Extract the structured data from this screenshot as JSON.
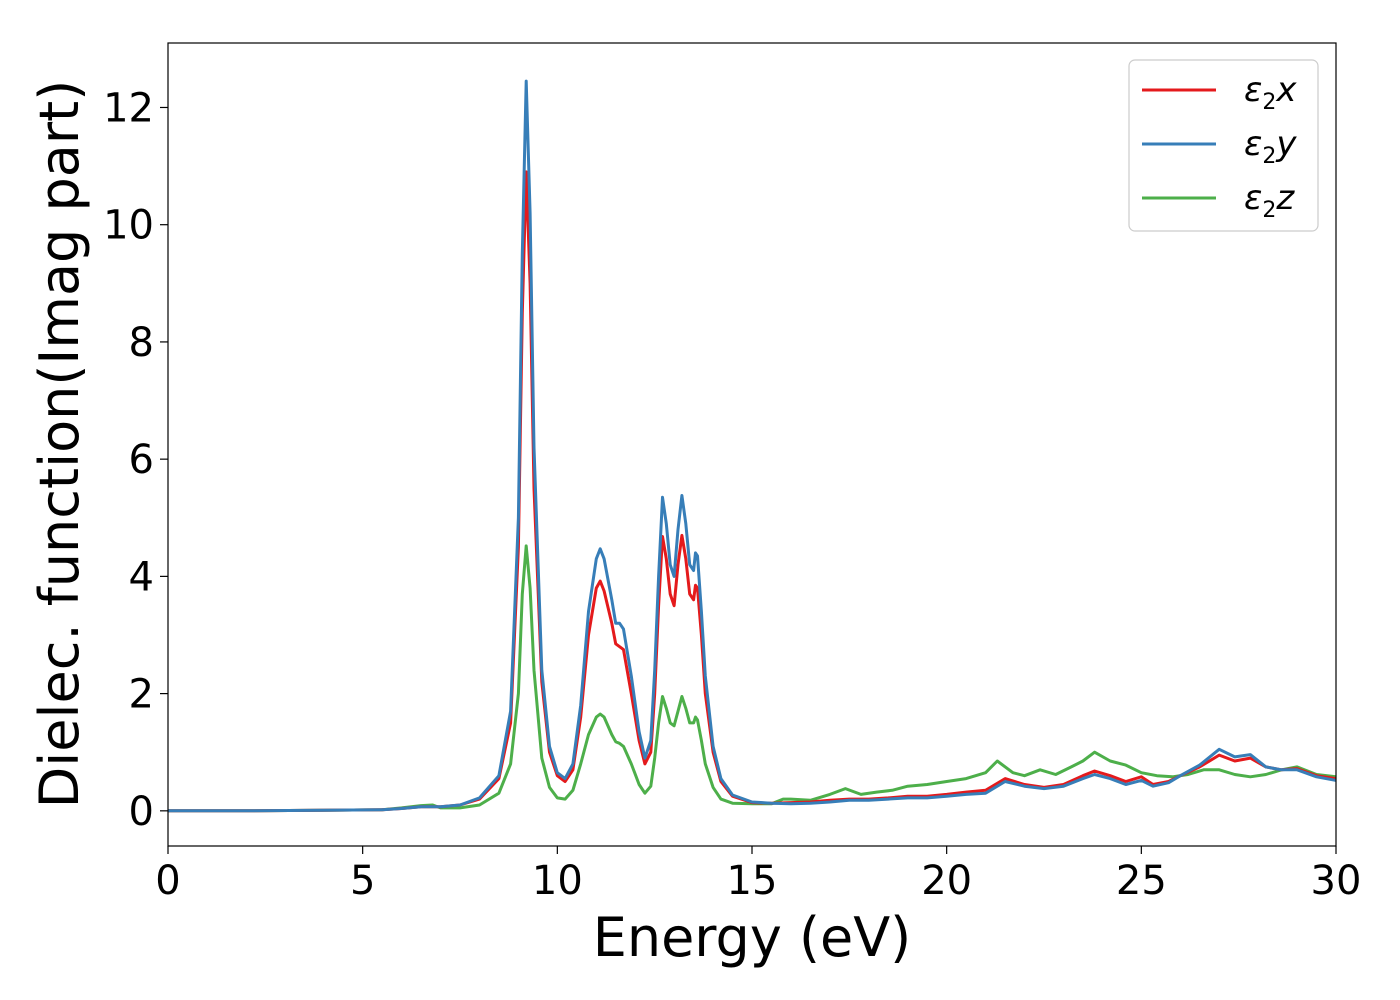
{
  "chart_data": {
    "type": "line",
    "title": "",
    "xlabel": "Energy (eV)",
    "ylabel": "Dielec. function(Imag part)",
    "xlim": [
      0,
      30
    ],
    "ylim": [
      -0.6,
      13.1
    ],
    "xticks": [
      0,
      5,
      10,
      15,
      20,
      25,
      30
    ],
    "yticks": [
      0,
      2,
      4,
      6,
      8,
      10,
      12
    ],
    "grid": false,
    "legend_position": "top-right",
    "series": [
      {
        "name": "ε2x",
        "base": "ε",
        "sub": "2",
        "var": "x",
        "color": "#e41a1c",
        "points": [
          [
            0,
            0
          ],
          [
            2,
            0
          ],
          [
            4,
            0.01
          ],
          [
            5.5,
            0.02
          ],
          [
            6,
            0.04
          ],
          [
            6.5,
            0.07
          ],
          [
            7,
            0.07
          ],
          [
            7.5,
            0.1
          ],
          [
            8,
            0.2
          ],
          [
            8.5,
            0.55
          ],
          [
            8.8,
            1.5
          ],
          [
            9.0,
            4.5
          ],
          [
            9.1,
            8.5
          ],
          [
            9.2,
            10.9
          ],
          [
            9.3,
            9.0
          ],
          [
            9.4,
            5.5
          ],
          [
            9.6,
            2.2
          ],
          [
            9.8,
            1.0
          ],
          [
            10.0,
            0.6
          ],
          [
            10.2,
            0.5
          ],
          [
            10.4,
            0.7
          ],
          [
            10.6,
            1.6
          ],
          [
            10.8,
            3.0
          ],
          [
            11.0,
            3.8
          ],
          [
            11.1,
            3.92
          ],
          [
            11.2,
            3.75
          ],
          [
            11.4,
            3.2
          ],
          [
            11.5,
            2.85
          ],
          [
            11.6,
            2.8
          ],
          [
            11.7,
            2.75
          ],
          [
            11.9,
            2.0
          ],
          [
            12.1,
            1.2
          ],
          [
            12.25,
            0.8
          ],
          [
            12.4,
            1.0
          ],
          [
            12.5,
            2.0
          ],
          [
            12.6,
            3.5
          ],
          [
            12.7,
            4.68
          ],
          [
            12.8,
            4.3
          ],
          [
            12.9,
            3.7
          ],
          [
            13.0,
            3.5
          ],
          [
            13.1,
            4.2
          ],
          [
            13.2,
            4.7
          ],
          [
            13.3,
            4.3
          ],
          [
            13.4,
            3.7
          ],
          [
            13.5,
            3.6
          ],
          [
            13.55,
            3.85
          ],
          [
            13.6,
            3.8
          ],
          [
            13.7,
            3.0
          ],
          [
            13.8,
            2.0
          ],
          [
            14.0,
            1.0
          ],
          [
            14.2,
            0.5
          ],
          [
            14.5,
            0.25
          ],
          [
            15,
            0.14
          ],
          [
            15.5,
            0.13
          ],
          [
            16,
            0.14
          ],
          [
            16.5,
            0.15
          ],
          [
            17,
            0.18
          ],
          [
            17.5,
            0.2
          ],
          [
            18,
            0.2
          ],
          [
            18.5,
            0.22
          ],
          [
            19,
            0.25
          ],
          [
            19.5,
            0.25
          ],
          [
            20,
            0.28
          ],
          [
            20.5,
            0.32
          ],
          [
            21,
            0.35
          ],
          [
            21.5,
            0.55
          ],
          [
            22,
            0.45
          ],
          [
            22.5,
            0.4
          ],
          [
            23,
            0.45
          ],
          [
            23.5,
            0.6
          ],
          [
            23.8,
            0.68
          ],
          [
            24.2,
            0.6
          ],
          [
            24.6,
            0.5
          ],
          [
            25,
            0.58
          ],
          [
            25.3,
            0.45
          ],
          [
            25.7,
            0.5
          ],
          [
            26,
            0.6
          ],
          [
            26.5,
            0.75
          ],
          [
            27,
            0.95
          ],
          [
            27.4,
            0.85
          ],
          [
            27.8,
            0.9
          ],
          [
            28.2,
            0.75
          ],
          [
            28.6,
            0.7
          ],
          [
            29,
            0.72
          ],
          [
            29.5,
            0.6
          ],
          [
            30,
            0.55
          ]
        ]
      },
      {
        "name": "ε2y",
        "base": "ε",
        "sub": "2",
        "var": "y",
        "color": "#377eb8",
        "points": [
          [
            0,
            0
          ],
          [
            2,
            0
          ],
          [
            4,
            0.01
          ],
          [
            5.5,
            0.02
          ],
          [
            6,
            0.04
          ],
          [
            6.5,
            0.07
          ],
          [
            7,
            0.07
          ],
          [
            7.5,
            0.1
          ],
          [
            8,
            0.22
          ],
          [
            8.5,
            0.6
          ],
          [
            8.8,
            1.7
          ],
          [
            9.0,
            5.0
          ],
          [
            9.1,
            9.5
          ],
          [
            9.2,
            12.45
          ],
          [
            9.3,
            10.2
          ],
          [
            9.4,
            6.2
          ],
          [
            9.6,
            2.4
          ],
          [
            9.8,
            1.1
          ],
          [
            10.0,
            0.65
          ],
          [
            10.2,
            0.55
          ],
          [
            10.4,
            0.8
          ],
          [
            10.6,
            1.8
          ],
          [
            10.8,
            3.4
          ],
          [
            11.0,
            4.3
          ],
          [
            11.1,
            4.47
          ],
          [
            11.2,
            4.3
          ],
          [
            11.4,
            3.6
          ],
          [
            11.5,
            3.2
          ],
          [
            11.6,
            3.2
          ],
          [
            11.7,
            3.1
          ],
          [
            11.9,
            2.3
          ],
          [
            12.1,
            1.35
          ],
          [
            12.25,
            0.9
          ],
          [
            12.4,
            1.2
          ],
          [
            12.5,
            2.4
          ],
          [
            12.6,
            4.0
          ],
          [
            12.7,
            5.35
          ],
          [
            12.8,
            4.9
          ],
          [
            12.9,
            4.2
          ],
          [
            13.0,
            4.0
          ],
          [
            13.1,
            4.8
          ],
          [
            13.2,
            5.38
          ],
          [
            13.3,
            4.9
          ],
          [
            13.4,
            4.2
          ],
          [
            13.5,
            4.1
          ],
          [
            13.55,
            4.4
          ],
          [
            13.6,
            4.35
          ],
          [
            13.7,
            3.4
          ],
          [
            13.8,
            2.3
          ],
          [
            14.0,
            1.1
          ],
          [
            14.2,
            0.55
          ],
          [
            14.5,
            0.27
          ],
          [
            15,
            0.15
          ],
          [
            15.5,
            0.13
          ],
          [
            16,
            0.12
          ],
          [
            16.5,
            0.13
          ],
          [
            17,
            0.15
          ],
          [
            17.5,
            0.18
          ],
          [
            18,
            0.18
          ],
          [
            18.5,
            0.2
          ],
          [
            19,
            0.22
          ],
          [
            19.5,
            0.22
          ],
          [
            20,
            0.25
          ],
          [
            20.5,
            0.28
          ],
          [
            21,
            0.3
          ],
          [
            21.5,
            0.5
          ],
          [
            22,
            0.42
          ],
          [
            22.5,
            0.38
          ],
          [
            23,
            0.42
          ],
          [
            23.5,
            0.55
          ],
          [
            23.8,
            0.62
          ],
          [
            24.2,
            0.55
          ],
          [
            24.6,
            0.45
          ],
          [
            25,
            0.52
          ],
          [
            25.3,
            0.42
          ],
          [
            25.7,
            0.48
          ],
          [
            26,
            0.6
          ],
          [
            26.5,
            0.78
          ],
          [
            27,
            1.05
          ],
          [
            27.4,
            0.92
          ],
          [
            27.8,
            0.96
          ],
          [
            28.2,
            0.75
          ],
          [
            28.6,
            0.7
          ],
          [
            29,
            0.7
          ],
          [
            29.5,
            0.58
          ],
          [
            30,
            0.52
          ]
        ]
      },
      {
        "name": "ε2z",
        "base": "ε",
        "sub": "2",
        "var": "z",
        "color": "#4daf4a",
        "points": [
          [
            0,
            0
          ],
          [
            2,
            0
          ],
          [
            4,
            0.01
          ],
          [
            5.5,
            0.02
          ],
          [
            6,
            0.05
          ],
          [
            6.5,
            0.09
          ],
          [
            6.8,
            0.1
          ],
          [
            7,
            0.05
          ],
          [
            7.5,
            0.05
          ],
          [
            8,
            0.1
          ],
          [
            8.5,
            0.3
          ],
          [
            8.8,
            0.8
          ],
          [
            9.0,
            2.0
          ],
          [
            9.1,
            3.7
          ],
          [
            9.2,
            4.52
          ],
          [
            9.3,
            3.8
          ],
          [
            9.4,
            2.4
          ],
          [
            9.6,
            0.9
          ],
          [
            9.8,
            0.4
          ],
          [
            10.0,
            0.22
          ],
          [
            10.2,
            0.2
          ],
          [
            10.4,
            0.35
          ],
          [
            10.6,
            0.8
          ],
          [
            10.8,
            1.3
          ],
          [
            11.0,
            1.6
          ],
          [
            11.1,
            1.65
          ],
          [
            11.2,
            1.6
          ],
          [
            11.4,
            1.3
          ],
          [
            11.5,
            1.18
          ],
          [
            11.6,
            1.15
          ],
          [
            11.7,
            1.1
          ],
          [
            11.9,
            0.8
          ],
          [
            12.1,
            0.45
          ],
          [
            12.25,
            0.3
          ],
          [
            12.4,
            0.42
          ],
          [
            12.5,
            0.9
          ],
          [
            12.6,
            1.5
          ],
          [
            12.7,
            1.95
          ],
          [
            12.8,
            1.75
          ],
          [
            12.9,
            1.5
          ],
          [
            13.0,
            1.45
          ],
          [
            13.1,
            1.7
          ],
          [
            13.2,
            1.95
          ],
          [
            13.3,
            1.75
          ],
          [
            13.4,
            1.5
          ],
          [
            13.5,
            1.5
          ],
          [
            13.55,
            1.6
          ],
          [
            13.6,
            1.55
          ],
          [
            13.7,
            1.2
          ],
          [
            13.8,
            0.8
          ],
          [
            14.0,
            0.4
          ],
          [
            14.2,
            0.2
          ],
          [
            14.5,
            0.13
          ],
          [
            15,
            0.12
          ],
          [
            15.5,
            0.12
          ],
          [
            15.8,
            0.2
          ],
          [
            16,
            0.2
          ],
          [
            16.5,
            0.18
          ],
          [
            17,
            0.28
          ],
          [
            17.4,
            0.38
          ],
          [
            17.8,
            0.28
          ],
          [
            18.2,
            0.32
          ],
          [
            18.6,
            0.35
          ],
          [
            19,
            0.42
          ],
          [
            19.5,
            0.45
          ],
          [
            20,
            0.5
          ],
          [
            20.5,
            0.55
          ],
          [
            21,
            0.65
          ],
          [
            21.3,
            0.85
          ],
          [
            21.7,
            0.65
          ],
          [
            22,
            0.6
          ],
          [
            22.4,
            0.7
          ],
          [
            22.8,
            0.62
          ],
          [
            23.2,
            0.75
          ],
          [
            23.5,
            0.85
          ],
          [
            23.8,
            1.0
          ],
          [
            24.2,
            0.85
          ],
          [
            24.6,
            0.78
          ],
          [
            25,
            0.65
          ],
          [
            25.4,
            0.6
          ],
          [
            25.8,
            0.58
          ],
          [
            26.2,
            0.62
          ],
          [
            26.6,
            0.7
          ],
          [
            27,
            0.7
          ],
          [
            27.4,
            0.62
          ],
          [
            27.8,
            0.58
          ],
          [
            28.2,
            0.62
          ],
          [
            28.6,
            0.7
          ],
          [
            29,
            0.75
          ],
          [
            29.5,
            0.62
          ],
          [
            30,
            0.58
          ]
        ]
      }
    ]
  }
}
